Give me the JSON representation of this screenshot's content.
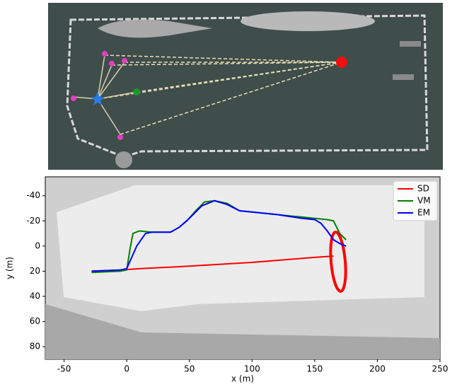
{
  "chart_data": {
    "type": "line",
    "xlabel": "x (m)",
    "ylabel": "y (m)",
    "xlim": [
      -65,
      250
    ],
    "xticks": [
      -50,
      0,
      50,
      100,
      150,
      200,
      250
    ],
    "ylim": [
      -55,
      90
    ],
    "yticks": [
      -40,
      -20,
      0,
      20,
      40,
      60,
      80
    ],
    "y_inverted": true,
    "legend": "upper right",
    "series": [
      {
        "name": "SD",
        "color": "#ff0000",
        "x": [
          -28,
          -5,
          10,
          50,
          100,
          150,
          165
        ],
        "values": [
          20,
          19,
          18,
          16,
          13,
          9,
          8
        ]
      },
      {
        "name": "VM",
        "color": "#008000",
        "x": [
          -28,
          -5,
          0,
          3,
          5,
          10,
          20,
          35,
          42,
          48,
          55,
          62,
          70,
          80,
          90,
          100,
          110,
          120,
          130,
          140,
          150,
          160,
          165,
          170,
          175
        ],
        "values": [
          21,
          20,
          19,
          0,
          -10,
          -12,
          -11,
          -11,
          -15,
          -20,
          -28,
          -35,
          -36,
          -34,
          -28,
          -27,
          -26,
          -25,
          -24,
          -23,
          -22,
          -21,
          -20,
          -10,
          -5
        ]
      },
      {
        "name": "EM",
        "color": "#0000ff",
        "x": [
          -28,
          -5,
          0,
          8,
          15,
          20,
          35,
          42,
          50,
          60,
          70,
          80,
          90,
          100,
          120,
          140,
          150,
          155,
          160,
          165,
          170,
          175
        ],
        "values": [
          20,
          19,
          18,
          0,
          -10,
          -11,
          -11,
          -15,
          -22,
          -32,
          -36,
          -33,
          -28,
          -27,
          -25,
          -22,
          -21,
          -18,
          -12,
          -5,
          -2,
          0
        ]
      }
    ]
  }
}
